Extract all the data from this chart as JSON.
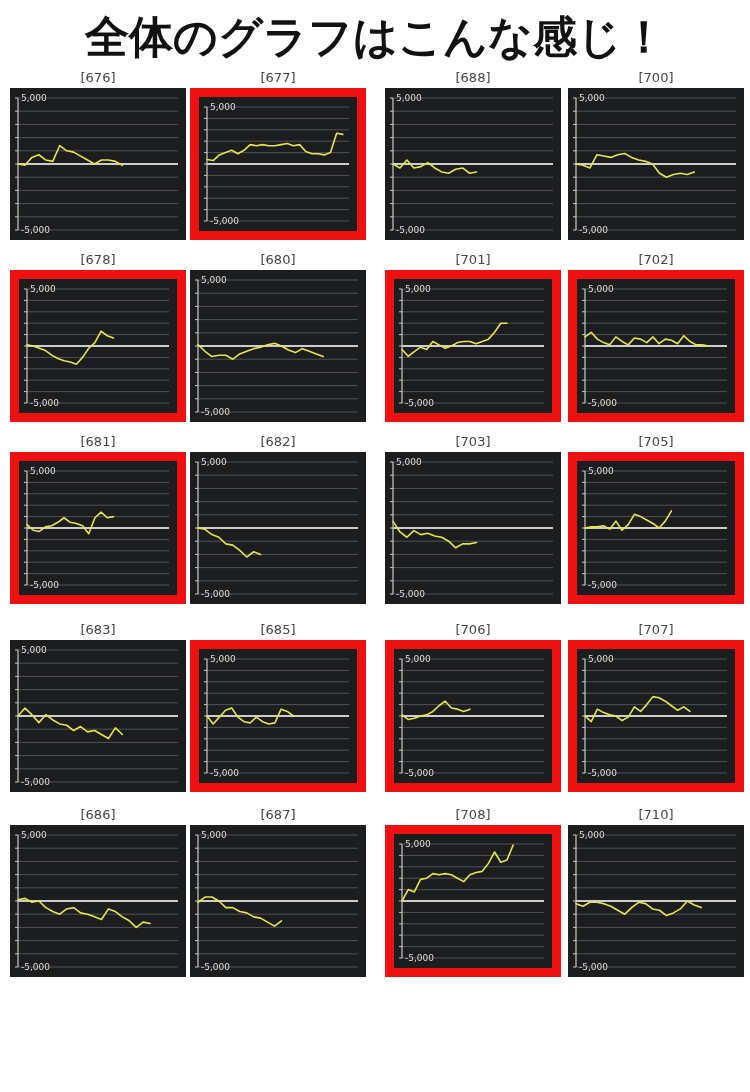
{
  "chart_data": [
    {
      "type": "other",
      "title": "全体のグラフはこんな感じ！"
    },
    {
      "type": "line",
      "title": "[676]",
      "categories": [
        null,
        null,
        null,
        null,
        null,
        null,
        null,
        null,
        null,
        null,
        null,
        null,
        null,
        null,
        null,
        null,
        null,
        null,
        null,
        null,
        null,
        null,
        null,
        null
      ],
      "values": [
        0,
        -100,
        500,
        700,
        300,
        200,
        1400,
        1000,
        900,
        600,
        300,
        0,
        300,
        300,
        200,
        -100,
        null,
        null,
        null,
        null,
        null,
        null,
        null,
        null
      ],
      "color": "#e6e64a",
      "ylim": [
        -5000,
        5000
      ],
      "yticks": [
        {
          "value": 5000,
          "label": "5,000"
        },
        {
          "value": 4000,
          "label": null
        },
        {
          "value": 3000,
          "label": null
        },
        {
          "value": 2000,
          "label": null
        },
        {
          "value": 1000,
          "label": null
        },
        {
          "value": 0,
          "label": null
        },
        {
          "value": -1000,
          "label": null
        },
        {
          "value": -2000,
          "label": null
        },
        {
          "value": -3000,
          "label": null
        },
        {
          "value": -4000,
          "label": null
        },
        {
          "value": -5000,
          "label": "-5,000"
        }
      ],
      "grid": "y",
      "ref_lines": [
        {
          "axis": "y",
          "value": 0,
          "color": "#ffffff"
        }
      ]
    },
    {
      "type": "line",
      "title": "[677]",
      "categories": [
        null,
        null,
        null,
        null,
        null,
        null,
        null,
        null,
        null,
        null,
        null,
        null,
        null,
        null,
        null,
        null,
        null,
        null,
        null,
        null,
        null,
        null,
        null,
        null
      ],
      "values": [
        400,
        300,
        800,
        1000,
        1200,
        900,
        1200,
        1700,
        1600,
        1700,
        1600,
        1600,
        1700,
        1800,
        1600,
        1700,
        1100,
        900,
        900,
        800,
        1000,
        2700,
        2600,
        null
      ],
      "color": "#e6e64a",
      "ylim": [
        -5000,
        5000
      ],
      "yticks": [
        {
          "value": 5000,
          "label": "5,000"
        },
        {
          "value": 4000,
          "label": null
        },
        {
          "value": 3000,
          "label": null
        },
        {
          "value": 2000,
          "label": null
        },
        {
          "value": 1000,
          "label": null
        },
        {
          "value": 0,
          "label": null
        },
        {
          "value": -1000,
          "label": null
        },
        {
          "value": -2000,
          "label": null
        },
        {
          "value": -3000,
          "label": null
        },
        {
          "value": -4000,
          "label": null
        },
        {
          "value": -5000,
          "label": "-5,000"
        }
      ],
      "grid": "y",
      "ref_lines": [
        {
          "axis": "y",
          "value": 0,
          "color": "#ffffff"
        }
      ]
    },
    {
      "type": "line",
      "title": "[688]",
      "categories": [
        null,
        null,
        null,
        null,
        null,
        null,
        null,
        null,
        null,
        null,
        null,
        null,
        null,
        null,
        null,
        null,
        null,
        null,
        null,
        null,
        null,
        null,
        null,
        null
      ],
      "values": [
        0,
        -300,
        300,
        -300,
        -200,
        100,
        -300,
        -600,
        -700,
        -400,
        -300,
        -700,
        -600,
        null,
        null,
        null,
        null,
        null,
        null,
        null,
        null,
        null,
        null,
        null
      ],
      "color": "#e6e64a",
      "ylim": [
        -5000,
        5000
      ],
      "yticks": [
        {
          "value": 5000,
          "label": "5,000"
        },
        {
          "value": 4000,
          "label": null
        },
        {
          "value": 3000,
          "label": null
        },
        {
          "value": 2000,
          "label": null
        },
        {
          "value": 1000,
          "label": null
        },
        {
          "value": 0,
          "label": null
        },
        {
          "value": -1000,
          "label": null
        },
        {
          "value": -2000,
          "label": null
        },
        {
          "value": -3000,
          "label": null
        },
        {
          "value": -4000,
          "label": null
        },
        {
          "value": -5000,
          "label": "-5,000"
        }
      ],
      "grid": "y",
      "ref_lines": [
        {
          "axis": "y",
          "value": 0,
          "color": "#ffffff"
        }
      ]
    },
    {
      "type": "line",
      "title": "[700]",
      "categories": [
        null,
        null,
        null,
        null,
        null,
        null,
        null,
        null,
        null,
        null,
        null,
        null,
        null,
        null,
        null,
        null,
        null,
        null,
        null,
        null,
        null,
        null,
        null,
        null
      ],
      "values": [
        0,
        -100,
        -300,
        700,
        600,
        500,
        700,
        800,
        500,
        300,
        200,
        0,
        -700,
        -1000,
        -800,
        -700,
        -800,
        -600,
        null,
        null,
        null,
        null,
        null,
        null
      ],
      "color": "#e6e64a",
      "ylim": [
        -5000,
        5000
      ],
      "yticks": [
        {
          "value": 5000,
          "label": "5,000"
        },
        {
          "value": 4000,
          "label": null
        },
        {
          "value": 3000,
          "label": null
        },
        {
          "value": 2000,
          "label": null
        },
        {
          "value": 1000,
          "label": null
        },
        {
          "value": 0,
          "label": null
        },
        {
          "value": -1000,
          "label": null
        },
        {
          "value": -2000,
          "label": null
        },
        {
          "value": -3000,
          "label": null
        },
        {
          "value": -4000,
          "label": null
        },
        {
          "value": -5000,
          "label": "-5,000"
        }
      ],
      "grid": "y",
      "ref_lines": [
        {
          "axis": "y",
          "value": 0,
          "color": "#ffffff"
        }
      ]
    },
    {
      "type": "line",
      "title": "[678]",
      "categories": [
        null,
        null,
        null,
        null,
        null,
        null,
        null,
        null,
        null,
        null,
        null,
        null,
        null,
        null,
        null,
        null,
        null,
        null,
        null,
        null,
        null,
        null,
        null,
        null
      ],
      "values": [
        100,
        0,
        -200,
        -400,
        -800,
        -1100,
        -1300,
        -1400,
        -1600,
        -1000,
        -200,
        300,
        1300,
        900,
        700,
        null,
        null,
        null,
        null,
        null,
        null,
        null,
        null,
        null
      ],
      "color": "#e6e64a",
      "ylim": [
        -5000,
        5000
      ],
      "yticks": [
        {
          "value": 5000,
          "label": "5,000"
        },
        {
          "value": 4000,
          "label": null
        },
        {
          "value": 3000,
          "label": null
        },
        {
          "value": 2000,
          "label": null
        },
        {
          "value": 1000,
          "label": null
        },
        {
          "value": 0,
          "label": null
        },
        {
          "value": -1000,
          "label": null
        },
        {
          "value": -2000,
          "label": null
        },
        {
          "value": -3000,
          "label": null
        },
        {
          "value": -4000,
          "label": null
        },
        {
          "value": -5000,
          "label": "-5,000"
        }
      ],
      "grid": "y",
      "ref_lines": [
        {
          "axis": "y",
          "value": 0,
          "color": "#ffffff"
        }
      ]
    },
    {
      "type": "line",
      "title": "[680]",
      "categories": [
        null,
        null,
        null,
        null,
        null,
        null,
        null,
        null,
        null,
        null,
        null,
        null,
        null,
        null,
        null,
        null,
        null,
        null,
        null,
        null,
        null,
        null,
        null,
        null
      ],
      "values": [
        100,
        -400,
        -800,
        -700,
        -700,
        -1000,
        -600,
        -400,
        -200,
        -100,
        100,
        200,
        0,
        -300,
        -500,
        -200,
        -400,
        -600,
        -800,
        null,
        null,
        null,
        null,
        null
      ],
      "color": "#e6e64a",
      "ylim": [
        -5000,
        5000
      ],
      "yticks": [
        {
          "value": 5000,
          "label": "5,000"
        },
        {
          "value": 4000,
          "label": null
        },
        {
          "value": 3000,
          "label": null
        },
        {
          "value": 2000,
          "label": null
        },
        {
          "value": 1000,
          "label": null
        },
        {
          "value": 0,
          "label": null
        },
        {
          "value": -1000,
          "label": null
        },
        {
          "value": -2000,
          "label": null
        },
        {
          "value": -3000,
          "label": null
        },
        {
          "value": -4000,
          "label": null
        },
        {
          "value": -5000,
          "label": "-5,000"
        }
      ],
      "grid": "y",
      "ref_lines": [
        {
          "axis": "y",
          "value": 0,
          "color": "#ffffff"
        }
      ]
    },
    {
      "type": "line",
      "title": "[701]",
      "categories": [
        null,
        null,
        null,
        null,
        null,
        null,
        null,
        null,
        null,
        null,
        null,
        null,
        null,
        null,
        null,
        null,
        null,
        null,
        null,
        null,
        null,
        null,
        null,
        null
      ],
      "values": [
        -300,
        -900,
        -500,
        -100,
        -300,
        400,
        100,
        -200,
        0,
        300,
        400,
        400,
        200,
        400,
        600,
        1200,
        2000,
        2000,
        null,
        null,
        null,
        null,
        null,
        null
      ],
      "color": "#e6e64a",
      "ylim": [
        -5000,
        5000
      ],
      "yticks": [
        {
          "value": 5000,
          "label": "5,000"
        },
        {
          "value": 4000,
          "label": null
        },
        {
          "value": 3000,
          "label": null
        },
        {
          "value": 2000,
          "label": null
        },
        {
          "value": 1000,
          "label": null
        },
        {
          "value": 0,
          "label": null
        },
        {
          "value": -1000,
          "label": null
        },
        {
          "value": -2000,
          "label": null
        },
        {
          "value": -3000,
          "label": null
        },
        {
          "value": -4000,
          "label": null
        },
        {
          "value": -5000,
          "label": "-5,000"
        }
      ],
      "grid": "y",
      "ref_lines": [
        {
          "axis": "y",
          "value": 0,
          "color": "#ffffff"
        }
      ]
    },
    {
      "type": "line",
      "title": "[702]",
      "categories": [
        null,
        null,
        null,
        null,
        null,
        null,
        null,
        null,
        null,
        null,
        null,
        null,
        null,
        null,
        null,
        null,
        null,
        null,
        null,
        null,
        null,
        null,
        null,
        null
      ],
      "values": [
        800,
        1200,
        600,
        300,
        100,
        800,
        400,
        100,
        700,
        600,
        300,
        800,
        200,
        600,
        500,
        200,
        900,
        400,
        100,
        100,
        0,
        null,
        null,
        null
      ],
      "color": "#e6e64a",
      "ylim": [
        -5000,
        5000
      ],
      "yticks": [
        {
          "value": 5000,
          "label": "5,000"
        },
        {
          "value": 4000,
          "label": null
        },
        {
          "value": 3000,
          "label": null
        },
        {
          "value": 2000,
          "label": null
        },
        {
          "value": 1000,
          "label": null
        },
        {
          "value": 0,
          "label": null
        },
        {
          "value": -1000,
          "label": null
        },
        {
          "value": -2000,
          "label": null
        },
        {
          "value": -3000,
          "label": null
        },
        {
          "value": -4000,
          "label": null
        },
        {
          "value": -5000,
          "label": "-5,000"
        }
      ],
      "grid": "y",
      "ref_lines": [
        {
          "axis": "y",
          "value": 0,
          "color": "#ffffff"
        }
      ]
    },
    {
      "type": "line",
      "title": "[681]",
      "categories": [
        null,
        null,
        null,
        null,
        null,
        null,
        null,
        null,
        null,
        null,
        null,
        null,
        null,
        null,
        null,
        null,
        null,
        null,
        null,
        null,
        null,
        null,
        null,
        null
      ],
      "values": [
        300,
        -200,
        -300,
        100,
        200,
        500,
        900,
        500,
        400,
        200,
        -500,
        900,
        1400,
        900,
        1000,
        null,
        null,
        null,
        null,
        null,
        null,
        null,
        null,
        null
      ],
      "color": "#e6e64a",
      "ylim": [
        -5000,
        5000
      ],
      "yticks": [
        {
          "value": 5000,
          "label": "5,000"
        },
        {
          "value": 4000,
          "label": null
        },
        {
          "value": 3000,
          "label": null
        },
        {
          "value": 2000,
          "label": null
        },
        {
          "value": 1000,
          "label": null
        },
        {
          "value": 0,
          "label": null
        },
        {
          "value": -1000,
          "label": null
        },
        {
          "value": -2000,
          "label": null
        },
        {
          "value": -3000,
          "label": null
        },
        {
          "value": -4000,
          "label": null
        },
        {
          "value": -5000,
          "label": "-5,000"
        }
      ],
      "grid": "y",
      "ref_lines": [
        {
          "axis": "y",
          "value": 0,
          "color": "#ffffff"
        }
      ]
    },
    {
      "type": "line",
      "title": "[682]",
      "categories": [
        null,
        null,
        null,
        null,
        null,
        null,
        null,
        null,
        null,
        null,
        null,
        null,
        null,
        null,
        null,
        null,
        null,
        null,
        null,
        null,
        null,
        null,
        null,
        null
      ],
      "values": [
        0,
        -100,
        -500,
        -700,
        -1200,
        -1300,
        -1700,
        -2200,
        -1800,
        -2000,
        null,
        null,
        null,
        null,
        null,
        null,
        null,
        null,
        null,
        null,
        null,
        null,
        null,
        null
      ],
      "color": "#e6e64a",
      "ylim": [
        -5000,
        5000
      ],
      "yticks": [
        {
          "value": 5000,
          "label": "5,000"
        },
        {
          "value": 4000,
          "label": null
        },
        {
          "value": 3000,
          "label": null
        },
        {
          "value": 2000,
          "label": null
        },
        {
          "value": 1000,
          "label": null
        },
        {
          "value": 0,
          "label": null
        },
        {
          "value": -1000,
          "label": null
        },
        {
          "value": -2000,
          "label": null
        },
        {
          "value": -3000,
          "label": null
        },
        {
          "value": -4000,
          "label": null
        },
        {
          "value": -5000,
          "label": "-5,000"
        }
      ],
      "grid": "y",
      "ref_lines": [
        {
          "axis": "y",
          "value": 0,
          "color": "#ffffff"
        }
      ]
    },
    {
      "type": "line",
      "title": "[703]",
      "categories": [
        null,
        null,
        null,
        null,
        null,
        null,
        null,
        null,
        null,
        null,
        null,
        null,
        null,
        null,
        null,
        null,
        null,
        null,
        null,
        null,
        null,
        null,
        null,
        null
      ],
      "values": [
        500,
        -300,
        -700,
        -200,
        -500,
        -400,
        -600,
        -700,
        -1000,
        -1500,
        -1200,
        -1200,
        -1100,
        null,
        null,
        null,
        null,
        null,
        null,
        null,
        null,
        null,
        null,
        null
      ],
      "color": "#e6e64a",
      "ylim": [
        -5000,
        5000
      ],
      "yticks": [
        {
          "value": 5000,
          "label": "5,000"
        },
        {
          "value": 4000,
          "label": null
        },
        {
          "value": 3000,
          "label": null
        },
        {
          "value": 2000,
          "label": null
        },
        {
          "value": 1000,
          "label": null
        },
        {
          "value": 0,
          "label": null
        },
        {
          "value": -1000,
          "label": null
        },
        {
          "value": -2000,
          "label": null
        },
        {
          "value": -3000,
          "label": null
        },
        {
          "value": -4000,
          "label": null
        },
        {
          "value": -5000,
          "label": "-5,000"
        }
      ],
      "grid": "y",
      "ref_lines": [
        {
          "axis": "y",
          "value": 0,
          "color": "#ffffff"
        }
      ]
    },
    {
      "type": "line",
      "title": "[705]",
      "categories": [
        null,
        null,
        null,
        null,
        null,
        null,
        null,
        null,
        null,
        null,
        null,
        null,
        null,
        null,
        null,
        null,
        null,
        null,
        null,
        null,
        null,
        null,
        null,
        null
      ],
      "values": [
        0,
        100,
        100,
        200,
        -100,
        600,
        -200,
        300,
        1200,
        1000,
        700,
        400,
        0,
        600,
        1500,
        null,
        null,
        null,
        null,
        null,
        null,
        null,
        null,
        null
      ],
      "color": "#e6e64a",
      "ylim": [
        -5000,
        5000
      ],
      "yticks": [
        {
          "value": 5000,
          "label": "5,000"
        },
        {
          "value": 4000,
          "label": null
        },
        {
          "value": 3000,
          "label": null
        },
        {
          "value": 2000,
          "label": null
        },
        {
          "value": 1000,
          "label": null
        },
        {
          "value": 0,
          "label": null
        },
        {
          "value": -1000,
          "label": null
        },
        {
          "value": -2000,
          "label": null
        },
        {
          "value": -3000,
          "label": null
        },
        {
          "value": -4000,
          "label": null
        },
        {
          "value": -5000,
          "label": "-5,000"
        }
      ],
      "grid": "y",
      "ref_lines": [
        {
          "axis": "y",
          "value": 0,
          "color": "#ffffff"
        }
      ]
    },
    {
      "type": "line",
      "title": "[683]",
      "categories": [
        null,
        null,
        null,
        null,
        null,
        null,
        null,
        null,
        null,
        null,
        null,
        null,
        null,
        null,
        null,
        null,
        null,
        null,
        null,
        null,
        null,
        null,
        null,
        null
      ],
      "values": [
        0,
        600,
        100,
        -500,
        100,
        -300,
        -600,
        -700,
        -1100,
        -800,
        -1200,
        -1100,
        -1400,
        -1700,
        -900,
        -1400,
        null,
        null,
        null,
        null,
        null,
        null,
        null,
        null
      ],
      "color": "#e6e64a",
      "ylim": [
        -5000,
        5000
      ],
      "yticks": [
        {
          "value": 5000,
          "label": "5,000"
        },
        {
          "value": 4000,
          "label": null
        },
        {
          "value": 3000,
          "label": null
        },
        {
          "value": 2000,
          "label": null
        },
        {
          "value": 1000,
          "label": null
        },
        {
          "value": 0,
          "label": null
        },
        {
          "value": -1000,
          "label": null
        },
        {
          "value": -2000,
          "label": null
        },
        {
          "value": -3000,
          "label": null
        },
        {
          "value": -4000,
          "label": null
        },
        {
          "value": -5000,
          "label": "-5,000"
        }
      ],
      "grid": "y",
      "ref_lines": [
        {
          "axis": "y",
          "value": 0,
          "color": "#ffffff"
        }
      ]
    },
    {
      "type": "line",
      "title": "[685]",
      "categories": [
        null,
        null,
        null,
        null,
        null,
        null,
        null,
        null,
        null,
        null,
        null,
        null,
        null,
        null,
        null,
        null,
        null,
        null,
        null,
        null,
        null,
        null,
        null,
        null
      ],
      "values": [
        0,
        -700,
        -100,
        500,
        700,
        -100,
        -500,
        -600,
        -100,
        -500,
        -700,
        -600,
        600,
        400,
        0,
        null,
        null,
        null,
        null,
        null,
        null,
        null,
        null,
        null
      ],
      "color": "#e6e64a",
      "ylim": [
        -5000,
        5000
      ],
      "yticks": [
        {
          "value": 5000,
          "label": "5,000"
        },
        {
          "value": 4000,
          "label": null
        },
        {
          "value": 3000,
          "label": null
        },
        {
          "value": 2000,
          "label": null
        },
        {
          "value": 1000,
          "label": null
        },
        {
          "value": 0,
          "label": null
        },
        {
          "value": -1000,
          "label": null
        },
        {
          "value": -2000,
          "label": null
        },
        {
          "value": -3000,
          "label": null
        },
        {
          "value": -4000,
          "label": null
        },
        {
          "value": -5000,
          "label": "-5,000"
        }
      ],
      "grid": "y",
      "ref_lines": [
        {
          "axis": "y",
          "value": 0,
          "color": "#ffffff"
        }
      ]
    },
    {
      "type": "line",
      "title": "[706]",
      "categories": [
        null,
        null,
        null,
        null,
        null,
        null,
        null,
        null,
        null,
        null,
        null,
        null,
        null,
        null,
        null,
        null,
        null,
        null,
        null,
        null,
        null,
        null,
        null,
        null
      ],
      "values": [
        100,
        -300,
        -200,
        0,
        100,
        400,
        900,
        1300,
        700,
        600,
        400,
        600,
        null,
        null,
        null,
        null,
        null,
        null,
        null,
        null,
        null,
        null,
        null,
        null
      ],
      "color": "#e6e64a",
      "ylim": [
        -5000,
        5000
      ],
      "yticks": [
        {
          "value": 5000,
          "label": "5,000"
        },
        {
          "value": 4000,
          "label": null
        },
        {
          "value": 3000,
          "label": null
        },
        {
          "value": 2000,
          "label": null
        },
        {
          "value": 1000,
          "label": null
        },
        {
          "value": 0,
          "label": null
        },
        {
          "value": -1000,
          "label": null
        },
        {
          "value": -2000,
          "label": null
        },
        {
          "value": -3000,
          "label": null
        },
        {
          "value": -4000,
          "label": null
        },
        {
          "value": -5000,
          "label": "-5,000"
        }
      ],
      "grid": "y",
      "ref_lines": [
        {
          "axis": "y",
          "value": 0,
          "color": "#ffffff"
        }
      ]
    },
    {
      "type": "line",
      "title": "[707]",
      "categories": [
        null,
        null,
        null,
        null,
        null,
        null,
        null,
        null,
        null,
        null,
        null,
        null,
        null,
        null,
        null,
        null,
        null,
        null,
        null,
        null,
        null,
        null,
        null,
        null
      ],
      "values": [
        0,
        -500,
        600,
        300,
        100,
        0,
        -400,
        -100,
        800,
        400,
        1000,
        1700,
        1600,
        1300,
        900,
        500,
        800,
        400,
        null,
        null,
        null,
        null,
        null,
        null
      ],
      "color": "#e6e64a",
      "ylim": [
        -5000,
        5000
      ],
      "yticks": [
        {
          "value": 5000,
          "label": "5,000"
        },
        {
          "value": 4000,
          "label": null
        },
        {
          "value": 3000,
          "label": null
        },
        {
          "value": 2000,
          "label": null
        },
        {
          "value": 1000,
          "label": null
        },
        {
          "value": 0,
          "label": null
        },
        {
          "value": -1000,
          "label": null
        },
        {
          "value": -2000,
          "label": null
        },
        {
          "value": -3000,
          "label": null
        },
        {
          "value": -4000,
          "label": null
        },
        {
          "value": -5000,
          "label": "-5,000"
        }
      ],
      "grid": "y",
      "ref_lines": [
        {
          "axis": "y",
          "value": 0,
          "color": "#ffffff"
        }
      ]
    },
    {
      "type": "line",
      "title": "[686]",
      "categories": [
        null,
        null,
        null,
        null,
        null,
        null,
        null,
        null,
        null,
        null,
        null,
        null,
        null,
        null,
        null,
        null,
        null,
        null,
        null,
        null,
        null,
        null,
        null,
        null
      ],
      "values": [
        100,
        200,
        -100,
        0,
        -500,
        -800,
        -1000,
        -600,
        -500,
        -900,
        -1000,
        -1200,
        -1400,
        -600,
        -800,
        -1200,
        -1500,
        -2000,
        -1600,
        -1700,
        null,
        null,
        null,
        null
      ],
      "color": "#e6e64a",
      "ylim": [
        -5000,
        5000
      ],
      "yticks": [
        {
          "value": 5000,
          "label": "5,000"
        },
        {
          "value": 4000,
          "label": null
        },
        {
          "value": 3000,
          "label": null
        },
        {
          "value": 2000,
          "label": null
        },
        {
          "value": 1000,
          "label": null
        },
        {
          "value": 0,
          "label": null
        },
        {
          "value": -1000,
          "label": null
        },
        {
          "value": -2000,
          "label": null
        },
        {
          "value": -3000,
          "label": null
        },
        {
          "value": -4000,
          "label": null
        },
        {
          "value": -5000,
          "label": "-5,000"
        }
      ],
      "grid": "y",
      "ref_lines": [
        {
          "axis": "y",
          "value": 0,
          "color": "#ffffff"
        }
      ]
    },
    {
      "type": "line",
      "title": "[687]",
      "categories": [
        null,
        null,
        null,
        null,
        null,
        null,
        null,
        null,
        null,
        null,
        null,
        null,
        null,
        null,
        null,
        null,
        null,
        null,
        null,
        null,
        null,
        null,
        null,
        null
      ],
      "values": [
        -100,
        300,
        300,
        0,
        -500,
        -500,
        -800,
        -900,
        -1200,
        -1300,
        -1600,
        -1900,
        -1500,
        null,
        null,
        null,
        null,
        null,
        null,
        null,
        null,
        null,
        null,
        null
      ],
      "color": "#e6e64a",
      "ylim": [
        -5000,
        5000
      ],
      "yticks": [
        {
          "value": 5000,
          "label": "5,000"
        },
        {
          "value": 4000,
          "label": null
        },
        {
          "value": 3000,
          "label": null
        },
        {
          "value": 2000,
          "label": null
        },
        {
          "value": 1000,
          "label": null
        },
        {
          "value": 0,
          "label": null
        },
        {
          "value": -1000,
          "label": null
        },
        {
          "value": -2000,
          "label": null
        },
        {
          "value": -3000,
          "label": null
        },
        {
          "value": -4000,
          "label": null
        },
        {
          "value": -5000,
          "label": "-5,000"
        }
      ],
      "grid": "y",
      "ref_lines": [
        {
          "axis": "y",
          "value": 0,
          "color": "#ffffff"
        }
      ]
    },
    {
      "type": "line",
      "title": "[708]",
      "categories": [
        null,
        null,
        null,
        null,
        null,
        null,
        null,
        null,
        null,
        null,
        null,
        null,
        null,
        null,
        null,
        null,
        null,
        null,
        null,
        null,
        null,
        null,
        null,
        null
      ],
      "values": [
        0,
        1000,
        800,
        1900,
        2000,
        2400,
        2300,
        2400,
        2300,
        2000,
        1700,
        2300,
        2500,
        2600,
        3300,
        4300,
        3400,
        3600,
        4900,
        null,
        null,
        null,
        null,
        null
      ],
      "color": "#e6e64a",
      "ylim": [
        -5000,
        5000
      ],
      "yticks": [
        {
          "value": 5000,
          "label": "5,000"
        },
        {
          "value": 4000,
          "label": null
        },
        {
          "value": 3000,
          "label": null
        },
        {
          "value": 2000,
          "label": null
        },
        {
          "value": 1000,
          "label": null
        },
        {
          "value": 0,
          "label": null
        },
        {
          "value": -1000,
          "label": null
        },
        {
          "value": -2000,
          "label": null
        },
        {
          "value": -3000,
          "label": null
        },
        {
          "value": -4000,
          "label": null
        },
        {
          "value": -5000,
          "label": "-5,000"
        }
      ],
      "grid": "y",
      "ref_lines": [
        {
          "axis": "y",
          "value": 0,
          "color": "#ffffff"
        }
      ]
    },
    {
      "type": "line",
      "title": "[710]",
      "categories": [
        null,
        null,
        null,
        null,
        null,
        null,
        null,
        null,
        null,
        null,
        null,
        null,
        null,
        null,
        null,
        null,
        null,
        null,
        null,
        null,
        null,
        null,
        null,
        null
      ],
      "values": [
        -200,
        -400,
        -100,
        -100,
        -200,
        -400,
        -700,
        -1000,
        -500,
        -100,
        -200,
        -600,
        -700,
        -1100,
        -900,
        -600,
        0,
        -300,
        -500,
        null,
        null,
        null,
        null,
        null
      ],
      "color": "#e6e64a",
      "ylim": [
        -5000,
        5000
      ],
      "yticks": [
        {
          "value": 5000,
          "label": "5,000"
        },
        {
          "value": 4000,
          "label": null
        },
        {
          "value": 3000,
          "label": null
        },
        {
          "value": 2000,
          "label": null
        },
        {
          "value": 1000,
          "label": null
        },
        {
          "value": 0,
          "label": null
        },
        {
          "value": -1000,
          "label": null
        },
        {
          "value": -2000,
          "label": null
        },
        {
          "value": -3000,
          "label": null
        },
        {
          "value": -4000,
          "label": null
        },
        {
          "value": -5000,
          "label": "-5,000"
        }
      ],
      "grid": "y",
      "ref_lines": [
        {
          "axis": "y",
          "value": 0,
          "color": "#ffffff"
        }
      ]
    }
  ]
}
